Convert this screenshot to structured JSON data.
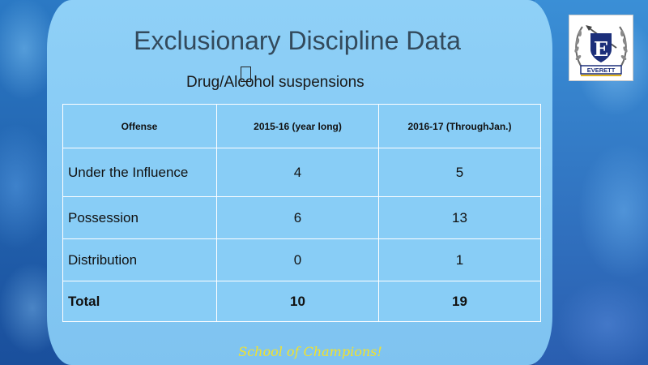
{
  "slide": {
    "title": "Exclusionary Discipline Data",
    "subtitle": "Drug/Alcohol suspensions",
    "footer": "School of Champions!"
  },
  "logo": {
    "letter": "E",
    "banner": "EVERETT"
  },
  "table": {
    "headers": [
      "Offense",
      "2015-16 (year long)",
      "2016-17 (ThroughJan.)"
    ],
    "rows": [
      [
        "Under the Influence",
        "4",
        "5"
      ],
      [
        "Possession",
        "6",
        "13"
      ],
      [
        "Distribution",
        "0",
        "1"
      ],
      [
        "Total",
        "10",
        "19"
      ]
    ]
  },
  "colors": {
    "panel": "#88cdf6",
    "title": "#334a5c",
    "footer": "#f3e22a",
    "logo_navy": "#1c2f7a",
    "logo_gold": "#e0b21c"
  }
}
